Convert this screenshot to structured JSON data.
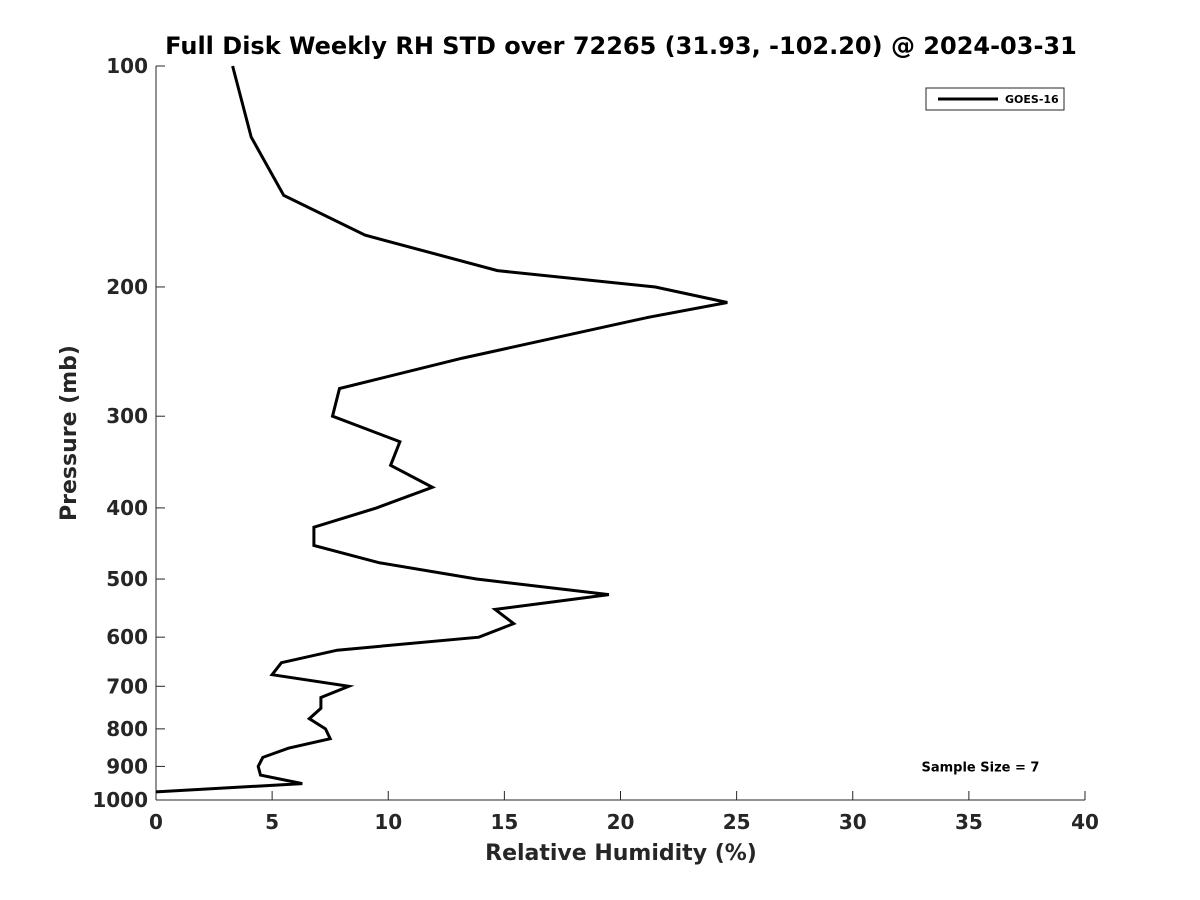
{
  "chart_data": {
    "type": "line",
    "title": "Full Disk Weekly RH STD over 72265 (31.93, -102.20) @ 2024-03-31",
    "xlabel": "Relative Humidity (%)",
    "ylabel": "Pressure (mb)",
    "xlim": [
      0,
      40
    ],
    "ylim": [
      100,
      1000
    ],
    "yscale": "log",
    "y_reversed": true,
    "xticks": [
      0,
      5,
      10,
      15,
      20,
      25,
      30,
      35,
      40
    ],
    "yticks": [
      100,
      200,
      300,
      400,
      500,
      600,
      700,
      800,
      900,
      1000
    ],
    "grid": false,
    "legend_position": "top-right",
    "series": [
      {
        "name": "GOES-16",
        "color": "#000000",
        "points": [
          [
            3.3,
            100
          ],
          [
            4.1,
            125
          ],
          [
            5.5,
            150
          ],
          [
            9.0,
            170
          ],
          [
            14.7,
            190
          ],
          [
            21.5,
            200
          ],
          [
            24.6,
            210
          ],
          [
            21.2,
            220
          ],
          [
            13.2,
            250
          ],
          [
            7.9,
            275
          ],
          [
            7.6,
            300
          ],
          [
            10.5,
            325
          ],
          [
            10.1,
            350
          ],
          [
            11.9,
            375
          ],
          [
            9.5,
            400
          ],
          [
            6.8,
            425
          ],
          [
            6.8,
            450
          ],
          [
            9.6,
            475
          ],
          [
            13.8,
            500
          ],
          [
            19.5,
            525
          ],
          [
            14.6,
            550
          ],
          [
            15.4,
            575
          ],
          [
            13.9,
            600
          ],
          [
            7.8,
            625
          ],
          [
            5.4,
            650
          ],
          [
            5.0,
            675
          ],
          [
            8.3,
            700
          ],
          [
            7.1,
            725
          ],
          [
            7.1,
            750
          ],
          [
            6.6,
            775
          ],
          [
            7.3,
            800
          ],
          [
            7.5,
            825
          ],
          [
            5.7,
            850
          ],
          [
            4.6,
            875
          ],
          [
            4.4,
            900
          ],
          [
            4.5,
            925
          ],
          [
            6.3,
            950
          ],
          [
            0.0,
            975
          ]
        ]
      }
    ],
    "annotations": [
      {
        "text": "Sample Size = 7",
        "x": 35.5,
        "y": 900
      }
    ]
  }
}
